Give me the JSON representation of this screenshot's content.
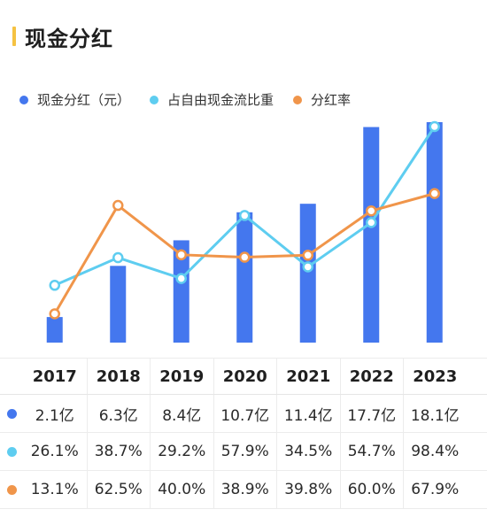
{
  "title": "现金分红",
  "colors": {
    "title_accent": "#f5c242",
    "dividend": "#4477ee",
    "fcf_ratio": "#5ecdf0",
    "payout": "#f0954a"
  },
  "legend": [
    {
      "label": "现金分红（元）",
      "color": "#4477ee"
    },
    {
      "label": "占自由现金流比重",
      "color": "#5ecdf0"
    },
    {
      "label": "分红率",
      "color": "#f0954a"
    }
  ],
  "chart_data": {
    "type": "bar",
    "categories": [
      "2017",
      "2018",
      "2019",
      "2020",
      "2021",
      "2022",
      "2023"
    ],
    "series": [
      {
        "name": "现金分红（元）",
        "kind": "bar",
        "values": [
          2.1,
          6.3,
          8.4,
          10.7,
          11.4,
          17.7,
          18.1
        ],
        "unit": "亿"
      },
      {
        "name": "占自由现金流比重",
        "kind": "line",
        "values": [
          26.1,
          38.7,
          29.2,
          57.9,
          34.5,
          54.7,
          98.4
        ],
        "unit": "%"
      },
      {
        "name": "分红率",
        "kind": "line",
        "values": [
          13.1,
          62.5,
          40.0,
          38.9,
          39.8,
          60.0,
          67.9
        ],
        "unit": "%"
      }
    ],
    "bar_ylim": [
      0,
      18.1
    ],
    "line_ylim": [
      0,
      98.4
    ],
    "grid": false,
    "legend_position": "top-left"
  },
  "table": {
    "years": [
      "2017",
      "2018",
      "2019",
      "2020",
      "2021",
      "2022",
      "2023"
    ],
    "rows": [
      {
        "color": "#4477ee",
        "cells": [
          "2.1亿",
          "6.3亿",
          "8.4亿",
          "10.7亿",
          "11.4亿",
          "17.7亿",
          "18.1亿"
        ]
      },
      {
        "color": "#5ecdf0",
        "cells": [
          "26.1%",
          "38.7%",
          "29.2%",
          "57.9%",
          "34.5%",
          "54.7%",
          "98.4%"
        ]
      },
      {
        "color": "#f0954a",
        "cells": [
          "13.1%",
          "62.5%",
          "40.0%",
          "38.9%",
          "39.8%",
          "60.0%",
          "67.9%"
        ]
      }
    ]
  }
}
